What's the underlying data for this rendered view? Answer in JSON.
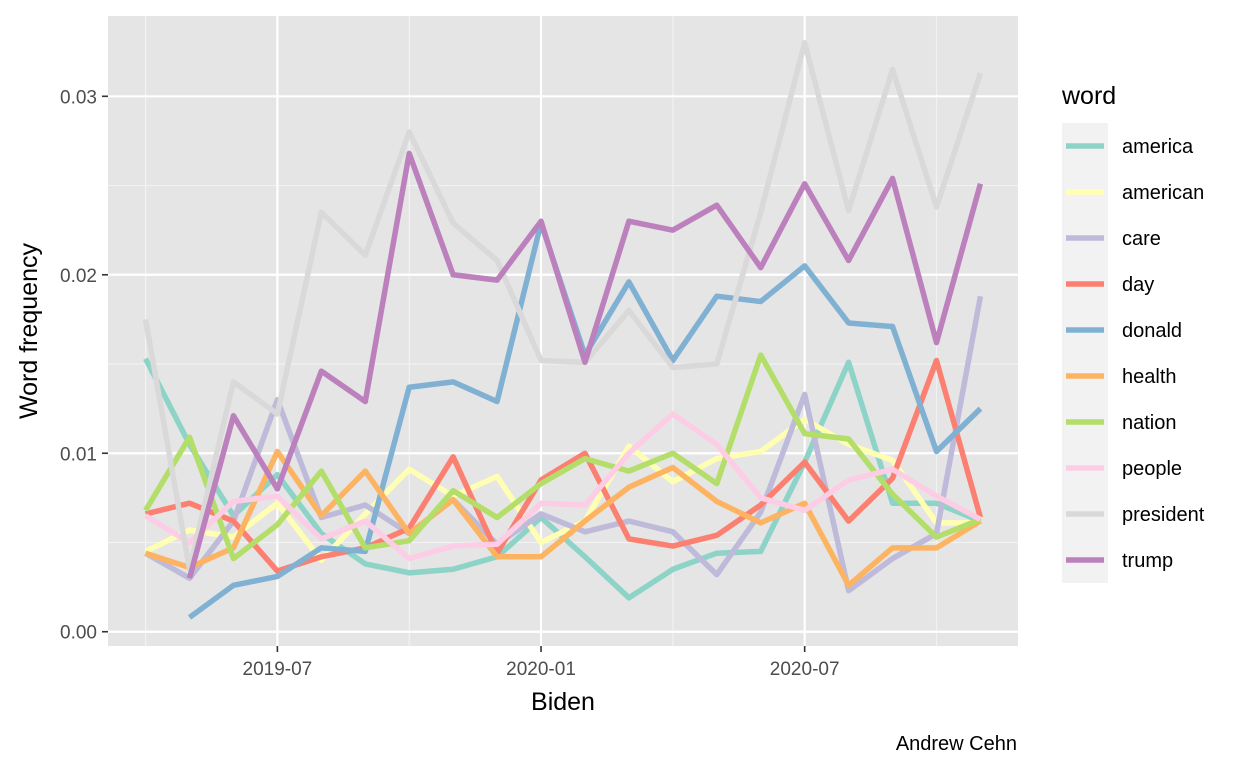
{
  "chart_data": {
    "type": "line",
    "xlabel": "Biden",
    "ylabel": "Word frequency",
    "caption": "Andrew Cehn",
    "legend_title": "word",
    "legend_position": "right",
    "grid": true,
    "x": [
      "2019-04",
      "2019-05",
      "2019-06",
      "2019-07",
      "2019-08",
      "2019-09",
      "2019-10",
      "2019-11",
      "2019-12",
      "2020-01",
      "2020-02",
      "2020-03",
      "2020-04",
      "2020-05",
      "2020-06",
      "2020-07",
      "2020-08",
      "2020-09",
      "2020-10",
      "2020-11"
    ],
    "x_ticks": [
      {
        "value": "2019-07",
        "label": "2019-07"
      },
      {
        "value": "2020-01",
        "label": "2020-01"
      },
      {
        "value": "2020-07",
        "label": "2020-07"
      }
    ],
    "ylim": [
      -0.0008,
      0.0345
    ],
    "y_ticks": [
      {
        "value": 0,
        "label": "0.00"
      },
      {
        "value": 0.01,
        "label": "0.01"
      },
      {
        "value": 0.02,
        "label": "0.02"
      },
      {
        "value": 0.03,
        "label": "0.03"
      }
    ],
    "series": [
      {
        "name": "america",
        "color": "#8dd3c7",
        "values": [
          0.0153,
          0.0105,
          0.0065,
          0.0088,
          0.0055,
          0.0038,
          0.0033,
          0.0035,
          0.0042,
          0.0064,
          0.0042,
          0.0019,
          0.0035,
          0.0044,
          0.0045,
          0.0095,
          0.0151,
          0.0072,
          0.0072,
          0.0062
        ]
      },
      {
        "name": "american",
        "color": "#ffffb3",
        "values": [
          0.0045,
          0.0057,
          0.0053,
          0.0072,
          0.004,
          0.0066,
          0.0091,
          0.0076,
          0.0087,
          0.005,
          0.0062,
          0.0104,
          0.0084,
          0.0097,
          0.0101,
          0.0119,
          0.0105,
          0.0096,
          0.0061,
          0.0061
        ]
      },
      {
        "name": "care",
        "color": "#bebada",
        "values": [
          0.0044,
          0.003,
          0.0062,
          0.013,
          0.0064,
          0.0071,
          0.0055,
          0.0074,
          0.0049,
          0.0066,
          0.0056,
          0.0062,
          0.0056,
          0.0032,
          0.0067,
          0.0133,
          0.0023,
          0.0041,
          0.0055,
          0.0188
        ]
      },
      {
        "name": "day",
        "color": "#fb8072",
        "values": [
          0.0066,
          0.0072,
          0.0062,
          0.0034,
          0.0042,
          0.0047,
          0.0058,
          0.0098,
          0.0044,
          0.0085,
          0.01,
          0.0052,
          0.0048,
          0.0054,
          0.0071,
          0.0095,
          0.0062,
          0.0086,
          0.0152,
          0.0064
        ]
      },
      {
        "name": "donald",
        "color": "#80b1d3",
        "values": [
          null,
          0.0008,
          0.0026,
          0.0031,
          0.0047,
          0.0045,
          0.0137,
          0.014,
          0.0129,
          0.0229,
          0.0155,
          0.0196,
          0.0152,
          0.0188,
          0.0185,
          0.0205,
          0.0173,
          0.0171,
          0.0101,
          0.0125
        ]
      },
      {
        "name": "health",
        "color": "#fdb462",
        "values": [
          0.0044,
          0.0036,
          0.0047,
          0.0101,
          0.0065,
          0.009,
          0.0055,
          0.0074,
          0.0042,
          0.0042,
          0.0062,
          0.0081,
          0.0092,
          0.0073,
          0.0061,
          0.0072,
          0.0026,
          0.0047,
          0.0047,
          0.0062
        ]
      },
      {
        "name": "nation",
        "color": "#b3de69",
        "values": [
          0.0068,
          0.0109,
          0.0041,
          0.006,
          0.009,
          0.0047,
          0.0051,
          0.0079,
          0.0064,
          0.0083,
          0.0097,
          0.009,
          0.01,
          0.0083,
          0.0155,
          0.0111,
          0.0108,
          0.0077,
          0.0053,
          0.0063
        ]
      },
      {
        "name": "people",
        "color": "#fccde5",
        "values": [
          0.0065,
          0.005,
          0.0073,
          0.0076,
          0.0052,
          0.0062,
          0.0041,
          0.0048,
          0.0049,
          0.0072,
          0.0071,
          0.01,
          0.0122,
          0.0105,
          0.0075,
          0.0068,
          0.0085,
          0.0091,
          0.0076,
          0.0063
        ]
      },
      {
        "name": "president",
        "color": "#d9d9d9",
        "values": [
          0.0175,
          0.0035,
          0.014,
          0.0122,
          0.0235,
          0.0211,
          0.028,
          0.0229,
          0.0208,
          0.0152,
          0.0151,
          0.018,
          0.0148,
          0.015,
          0.0235,
          0.033,
          0.0236,
          0.0315,
          0.0238,
          0.0313
        ]
      },
      {
        "name": "trump",
        "color": "#bc80bd",
        "values": [
          null,
          0.003,
          0.0121,
          0.008,
          0.0146,
          0.0129,
          0.0268,
          0.02,
          0.0197,
          0.023,
          0.0151,
          0.023,
          0.0225,
          0.0239,
          0.0204,
          0.0251,
          0.0208,
          0.0254,
          0.0162,
          0.0251
        ]
      }
    ]
  }
}
